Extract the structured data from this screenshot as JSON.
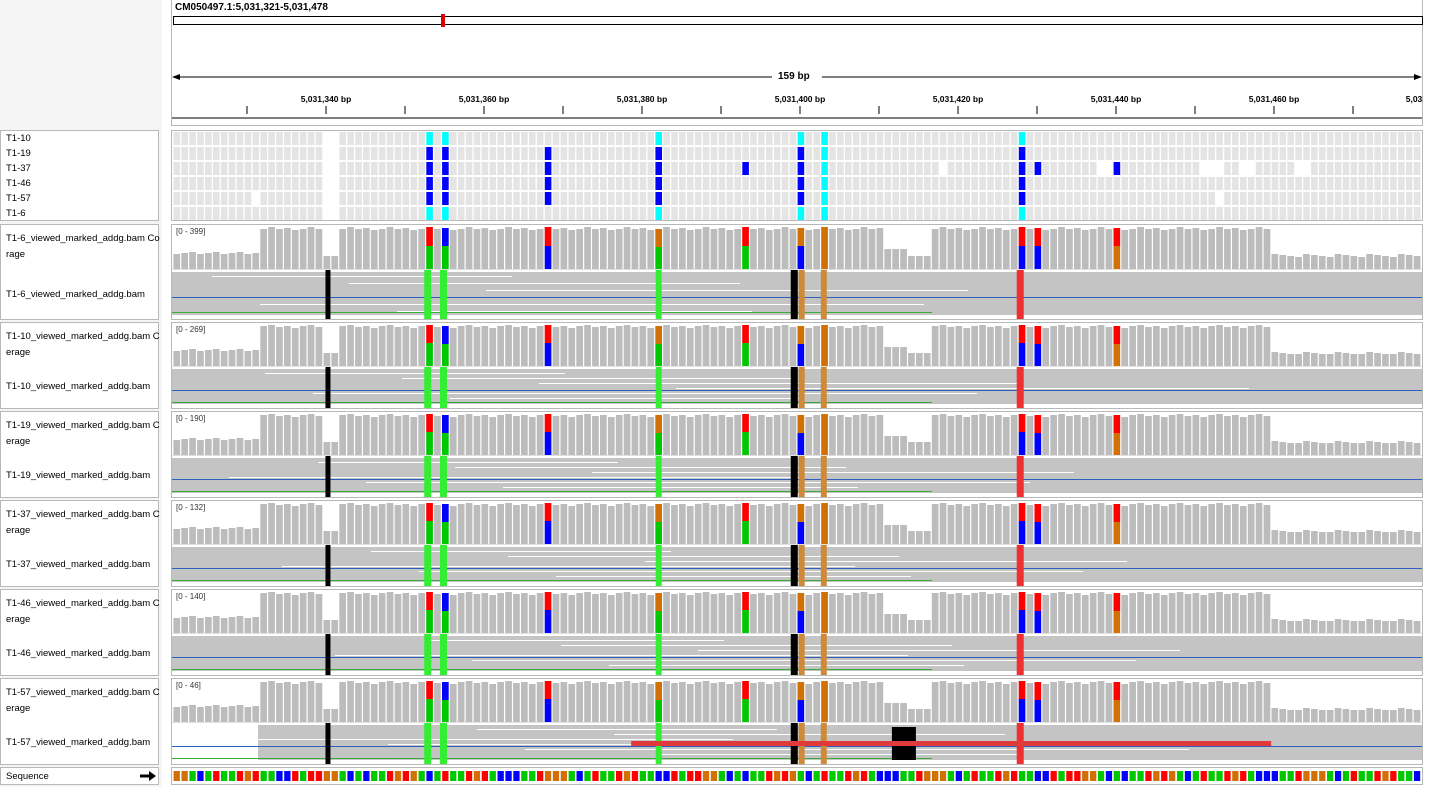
{
  "locus": "CM050497.1:5,031,321-5,031,478",
  "span_label": "159 bp",
  "ruler_ticks": [
    "5,031,340 bp",
    "5,031,360 bp",
    "5,031,380 bp",
    "5,031,400 bp",
    "5,031,420 bp",
    "5,031,440 bp",
    "5,031,460 bp",
    "5,03"
  ],
  "samples": [
    "T1-10",
    "T1-19",
    "T1-37",
    "T1-46",
    "T1-57",
    "T1-6"
  ],
  "tracks": [
    {
      "coverage_label": "T1-6_viewed_marked_addg.bam Co",
      "coverage_label_2": "rage",
      "range": "[0 - 399]",
      "reads_label": "T1-6_viewed_marked_addg.bam"
    },
    {
      "coverage_label": "T1-10_viewed_marked_addg.bam C",
      "coverage_label_2": "erage",
      "range": "[0 - 269]",
      "reads_label": "T1-10_viewed_marked_addg.bam"
    },
    {
      "coverage_label": "T1-19_viewed_marked_addg.bam C",
      "coverage_label_2": "erage",
      "range": "[0 - 190]",
      "reads_label": "T1-19_viewed_marked_addg.bam"
    },
    {
      "coverage_label": "T1-37_viewed_marked_addg.bam C",
      "coverage_label_2": "erage",
      "range": "[0 - 132]",
      "reads_label": "T1-37_viewed_marked_addg.bam"
    },
    {
      "coverage_label": "T1-46_viewed_marked_addg.bam C",
      "coverage_label_2": "erage",
      "range": "[0 - 140]",
      "reads_label": "T1-46_viewed_marked_addg.bam"
    },
    {
      "coverage_label": "T1-57_viewed_marked_addg.bam C",
      "coverage_label_2": "erage",
      "range": "[0 - 46]",
      "reads_label": "T1-57_viewed_marked_addg.bam"
    }
  ],
  "sequence_label": "Sequence",
  "sequence_arrow": "forward-arrow-icon",
  "colors": {
    "A": "#00c800",
    "C": "#0000ff",
    "G": "#d17105",
    "T": "#ff0000",
    "cyan": "#00ffff",
    "coverage": "#bcbcbc",
    "read": "#c4c4c4",
    "del": "#000000"
  }
}
